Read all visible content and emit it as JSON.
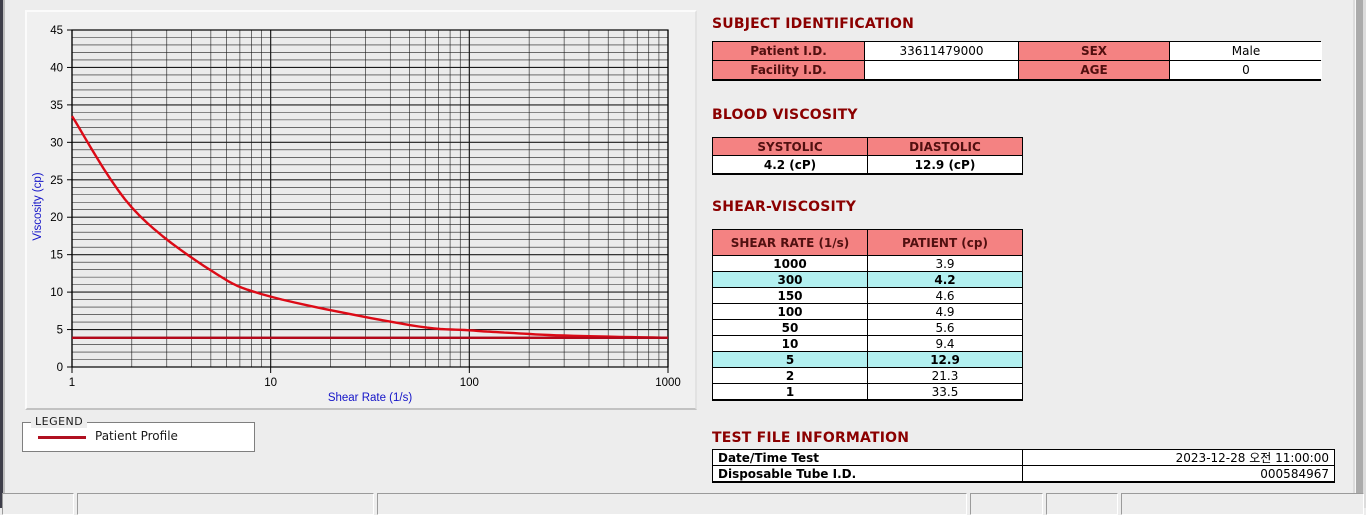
{
  "chart_data": {
    "type": "line",
    "title": "",
    "xlabel": "Shear Rate (1/s)",
    "ylabel": "Viscosity (cp)",
    "x_scale": "log",
    "xlim": [
      1,
      1000
    ],
    "ylim": [
      0,
      45
    ],
    "y_major_step": 5,
    "y_minor_step": 1,
    "x_ticks": [
      "1",
      "10",
      "100",
      "1000"
    ],
    "grid": "on",
    "legend_position": "below-chart",
    "series": [
      {
        "name": "Patient Profile",
        "color": "#dc0a16",
        "x": [
          1,
          2,
          5,
          10,
          50,
          100,
          150,
          300,
          1000
        ],
        "y": [
          33.5,
          21.3,
          12.9,
          9.4,
          5.6,
          4.9,
          4.6,
          4.2,
          3.9
        ]
      },
      {
        "name": "high-shear-reference-line",
        "type": "hline",
        "color": "#b4081a",
        "y": 3.9
      }
    ],
    "legend": {
      "title": "LEGEND",
      "entries": [
        {
          "label": "Patient Profile",
          "color": "#b01020"
        }
      ]
    }
  },
  "subject_identification": {
    "title": "SUBJECT IDENTIFICATION",
    "rows": [
      {
        "label1": "Patient I.D.",
        "value1": "33611479000",
        "label2": "SEX",
        "value2": "Male"
      },
      {
        "label1": "Facility I.D.",
        "value1": "",
        "label2": "AGE",
        "value2": "0"
      }
    ]
  },
  "blood_viscosity": {
    "title": "BLOOD VISCOSITY",
    "headers": [
      "SYSTOLIC",
      "DIASTOLIC"
    ],
    "values": [
      "4.2 (cP)",
      "12.9 (cP)"
    ]
  },
  "shear_viscosity": {
    "title": "SHEAR-VISCOSITY",
    "headers": [
      "SHEAR RATE (1/s)",
      "PATIENT (cp)"
    ],
    "rows": [
      {
        "rate": "1000",
        "value": "3.9",
        "highlight": false
      },
      {
        "rate": "300",
        "value": "4.2",
        "highlight": true
      },
      {
        "rate": "150",
        "value": "4.6",
        "highlight": false
      },
      {
        "rate": "100",
        "value": "4.9",
        "highlight": false
      },
      {
        "rate": "50",
        "value": "5.6",
        "highlight": false
      },
      {
        "rate": "10",
        "value": "9.4",
        "highlight": false
      },
      {
        "rate": "5",
        "value": "12.9",
        "highlight": true
      },
      {
        "rate": "2",
        "value": "21.3",
        "highlight": false
      },
      {
        "rate": "1",
        "value": "33.5",
        "highlight": false
      }
    ]
  },
  "test_file_information": {
    "title": "TEST FILE INFORMATION",
    "rows": [
      {
        "label": "Date/Time Test",
        "value": "2023-12-28  오전 11:00:00"
      },
      {
        "label": "Disposable Tube I.D.",
        "value": "000584967"
      }
    ]
  },
  "colors": {
    "section_title": "#8b0000",
    "table_header_bg": "#f48282",
    "table_header_text": "#511010",
    "highlight_row_bg": "#b2f0f0",
    "axis_title_blue": "#1414c8",
    "plot_background": "#ebebeb",
    "grid_line": "#1c1c1c"
  }
}
